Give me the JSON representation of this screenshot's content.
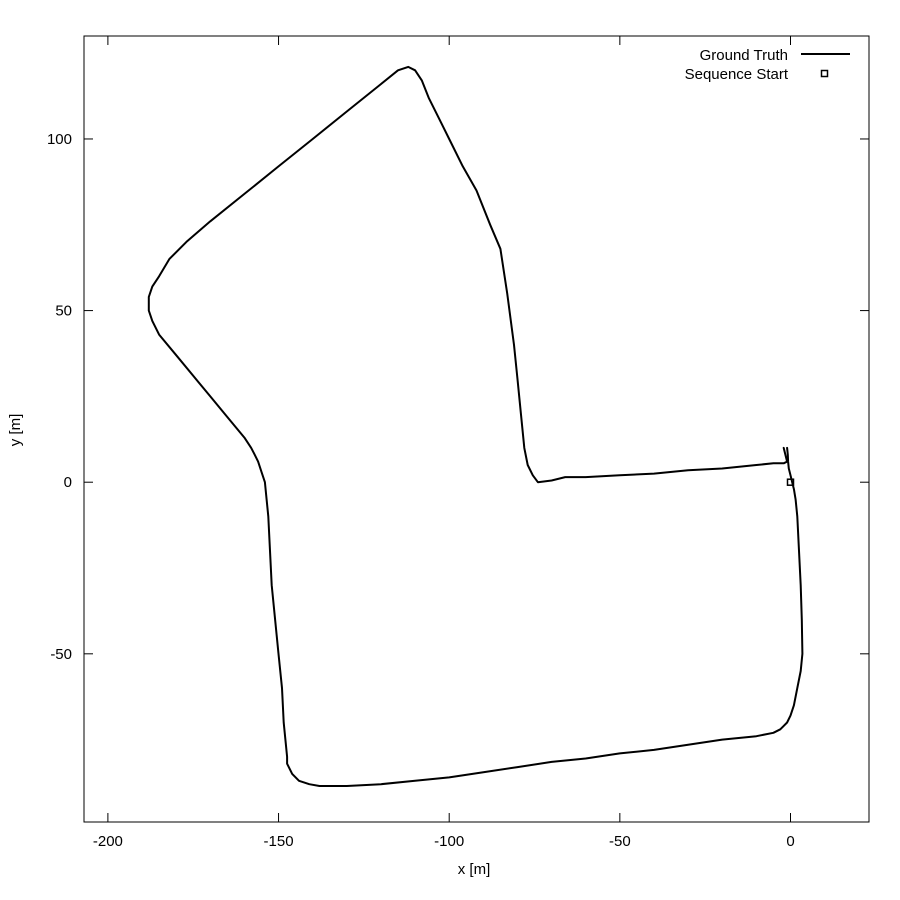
{
  "chart_data": {
    "type": "line",
    "title": "",
    "xlabel": "x [m]",
    "ylabel": "y [m]",
    "xlim": [
      -207,
      23
    ],
    "ylim": [
      -99,
      130
    ],
    "xticks": [
      -200,
      -150,
      -100,
      -50,
      0
    ],
    "yticks": [
      -50,
      0,
      50,
      100
    ],
    "grid": false,
    "legend_position": "top-right",
    "series": [
      {
        "name": "Ground Truth",
        "style": "line",
        "color": "#000000",
        "x": [
          -2,
          -1,
          -2,
          -5,
          -10,
          -20,
          -30,
          -40,
          -50,
          -60,
          -66,
          -70,
          -74,
          -75.5,
          -77,
          -78,
          -79,
          -80,
          -81,
          -83,
          -85,
          -88,
          -92,
          -96,
          -100,
          -103,
          -106,
          -108,
          -110,
          -112,
          -115,
          -120,
          -130,
          -140,
          -150,
          -160,
          -170,
          -177,
          -182,
          -185,
          -187,
          -188,
          -188,
          -187,
          -185,
          -180,
          -175,
          -170,
          -165,
          -160,
          -158,
          -157,
          -156,
          -155,
          -154,
          -153.5,
          -153,
          -152.5,
          -152,
          -151,
          -150,
          -149,
          -148.5,
          -148,
          -147.5,
          -147.5,
          -146,
          -144,
          -141,
          -138,
          -135,
          -130,
          -120,
          -110,
          -100,
          -90,
          -80,
          -70,
          -60,
          -50,
          -40,
          -30,
          -20,
          -10,
          -5,
          -3,
          -2,
          -1,
          0,
          1,
          2,
          3,
          3.5,
          3.3,
          3,
          2.5,
          2,
          1.5,
          1,
          0.5,
          0,
          -0.5,
          -0.7,
          -0.8,
          -1
        ],
        "y": [
          10,
          6,
          5.5,
          5.5,
          5,
          4,
          3.5,
          2.5,
          2,
          1.5,
          1.5,
          0.5,
          0,
          2,
          5,
          10,
          20,
          30,
          40,
          55,
          68,
          75,
          85,
          92,
          100,
          106,
          112,
          117,
          120,
          121,
          120,
          116,
          108,
          100,
          92,
          84,
          76,
          70,
          65,
          60,
          57,
          54,
          50,
          47,
          43,
          37,
          31,
          25,
          19,
          13,
          10,
          8,
          6,
          3,
          0,
          -5,
          -10,
          -20,
          -30,
          -40,
          -50,
          -60,
          -70,
          -75,
          -80,
          -82,
          -85,
          -87,
          -88,
          -88.5,
          -88.5,
          -88.5,
          -88,
          -87,
          -86,
          -84.5,
          -83,
          -81.5,
          -80.5,
          -79,
          -78,
          -76.5,
          -75,
          -74,
          -73,
          -72,
          -71,
          -70,
          -68,
          -65,
          -60,
          -55,
          -50,
          -40,
          -30,
          -20,
          -10,
          -5,
          -2,
          0,
          2,
          4,
          6,
          8,
          10
        ]
      },
      {
        "name": "Sequence Start",
        "style": "marker",
        "marker": "square",
        "color": "#000000",
        "x": [
          0
        ],
        "y": [
          0
        ]
      }
    ]
  }
}
